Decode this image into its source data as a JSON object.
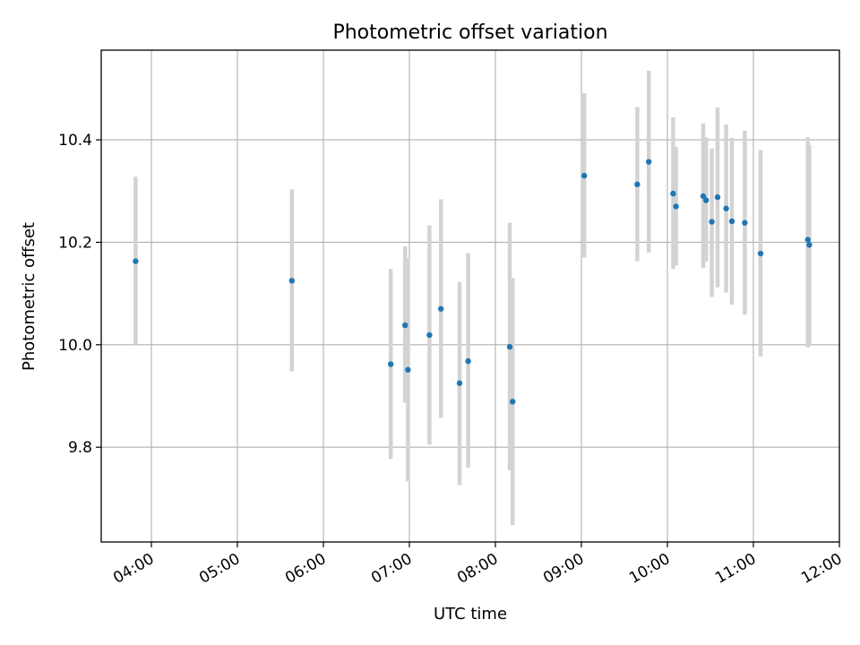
{
  "chart_data": {
    "type": "scatter",
    "title": "Photometric offset variation",
    "xlabel": "UTC time",
    "ylabel": "Photometric offset",
    "grid": true,
    "legend": "none",
    "xlim": [
      "03:25",
      "12:00"
    ],
    "ylim": [
      9.615,
      10.575
    ],
    "x_ticks": [
      "04:00",
      "05:00",
      "06:00",
      "07:00",
      "08:00",
      "09:00",
      "10:00",
      "11:00",
      "12:00"
    ],
    "y_ticks": [
      "9.8",
      "10.0",
      "10.2",
      "10.4"
    ],
    "colors": {
      "marker": "#1f77b4",
      "error_bar": "#d3d3d3",
      "grid": "#b0b0b0",
      "axes": "#000000"
    },
    "points": [
      {
        "x": "03:49",
        "y": 10.163,
        "ylow": 10.0,
        "yhigh": 10.328
      },
      {
        "x": "05:38",
        "y": 10.125,
        "ylow": 9.948,
        "yhigh": 10.303
      },
      {
        "x": "06:47",
        "y": 9.962,
        "ylow": 9.777,
        "yhigh": 10.148
      },
      {
        "x": "06:57",
        "y": 10.038,
        "ylow": 9.887,
        "yhigh": 10.192
      },
      {
        "x": "06:59",
        "y": 9.951,
        "ylow": 9.733,
        "yhigh": 10.17
      },
      {
        "x": "07:14",
        "y": 10.019,
        "ylow": 9.805,
        "yhigh": 10.233
      },
      {
        "x": "07:22",
        "y": 10.07,
        "ylow": 9.857,
        "yhigh": 10.284
      },
      {
        "x": "07:35",
        "y": 9.925,
        "ylow": 9.726,
        "yhigh": 10.123
      },
      {
        "x": "07:41",
        "y": 9.968,
        "ylow": 9.76,
        "yhigh": 10.179
      },
      {
        "x": "08:10",
        "y": 9.996,
        "ylow": 9.755,
        "yhigh": 10.238
      },
      {
        "x": "08:12",
        "y": 9.889,
        "ylow": 9.648,
        "yhigh": 10.13
      },
      {
        "x": "09:02",
        "y": 10.33,
        "ylow": 10.17,
        "yhigh": 10.491
      },
      {
        "x": "09:39",
        "y": 10.313,
        "ylow": 10.163,
        "yhigh": 10.464
      },
      {
        "x": "09:47",
        "y": 10.357,
        "ylow": 10.18,
        "yhigh": 10.535
      },
      {
        "x": "10:04",
        "y": 10.295,
        "ylow": 10.148,
        "yhigh": 10.444
      },
      {
        "x": "10:06",
        "y": 10.27,
        "ylow": 10.155,
        "yhigh": 10.386
      },
      {
        "x": "10:25",
        "y": 10.29,
        "ylow": 10.15,
        "yhigh": 10.432
      },
      {
        "x": "10:27",
        "y": 10.282,
        "ylow": 10.162,
        "yhigh": 10.405
      },
      {
        "x": "10:31",
        "y": 10.24,
        "ylow": 10.093,
        "yhigh": 10.383
      },
      {
        "x": "10:35",
        "y": 10.288,
        "ylow": 10.112,
        "yhigh": 10.463
      },
      {
        "x": "10:41",
        "y": 10.266,
        "ylow": 10.102,
        "yhigh": 10.43
      },
      {
        "x": "10:45",
        "y": 10.241,
        "ylow": 10.078,
        "yhigh": 10.404
      },
      {
        "x": "10:54",
        "y": 10.238,
        "ylow": 10.059,
        "yhigh": 10.418
      },
      {
        "x": "11:05",
        "y": 10.178,
        "ylow": 9.977,
        "yhigh": 10.38
      },
      {
        "x": "11:38",
        "y": 10.205,
        "ylow": 9.995,
        "yhigh": 10.405
      },
      {
        "x": "11:39",
        "y": 10.195,
        "ylow": 10.0,
        "yhigh": 10.39
      }
    ]
  }
}
